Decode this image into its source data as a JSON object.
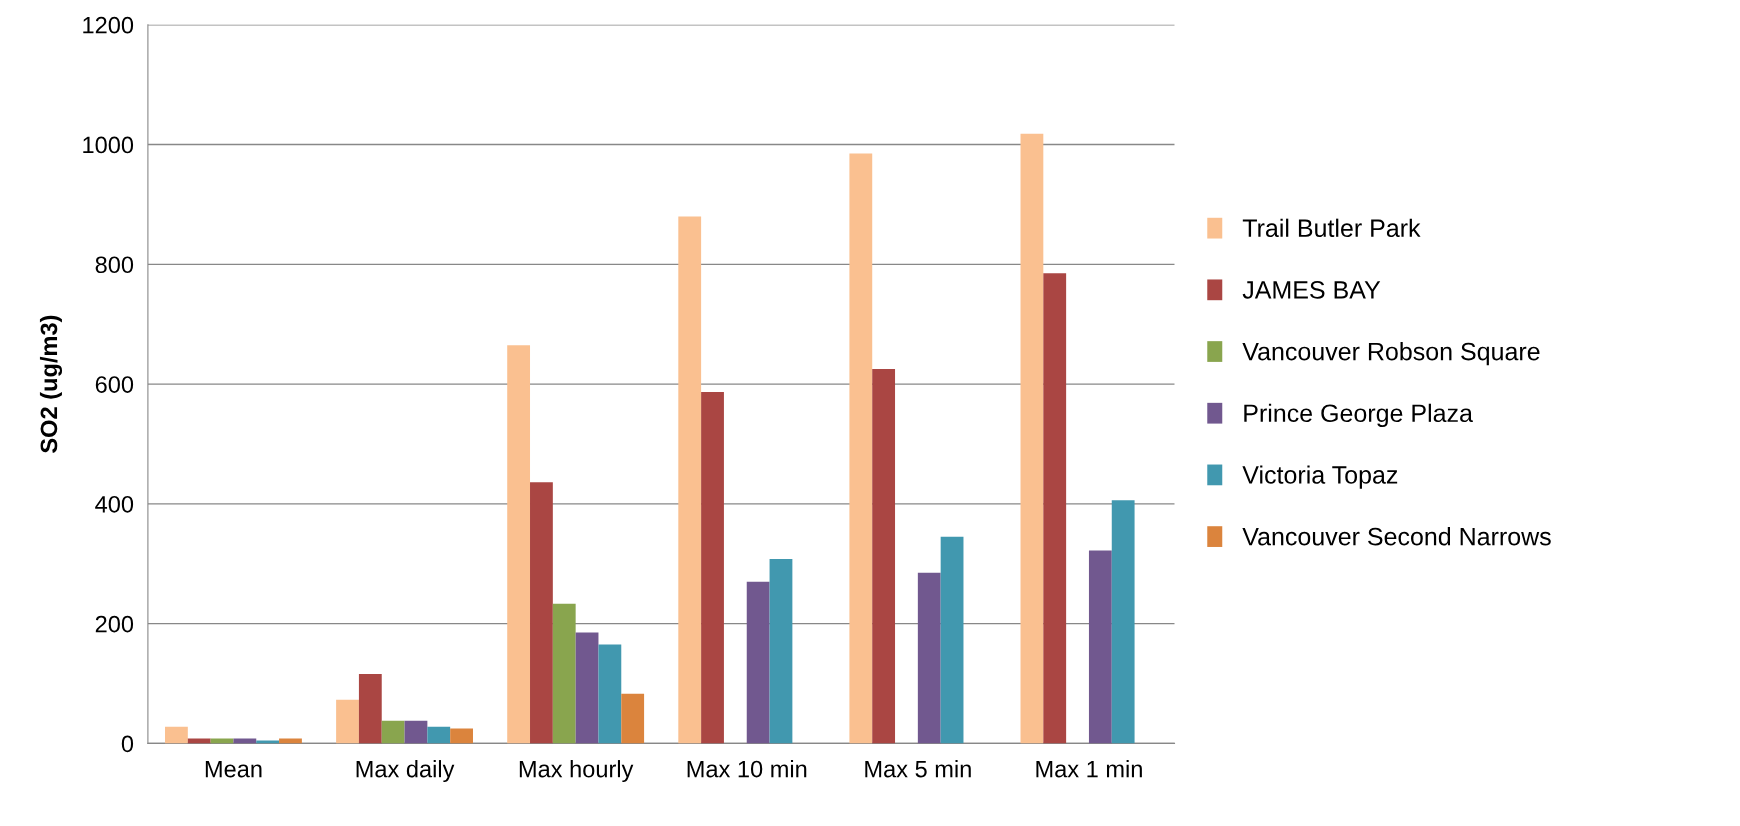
{
  "chart_data": {
    "type": "bar",
    "ylabel": "SO2 (ug/m3)",
    "categories": [
      "Mean",
      "Max daily",
      "Max hourly",
      "Max 10 min",
      "Max 5 min",
      "Max 1 min"
    ],
    "series": [
      {
        "name": "Trail Butler Park",
        "color": "#fac090",
        "values": [
          28,
          73,
          665,
          880,
          985,
          1018
        ]
      },
      {
        "name": "JAMES BAY",
        "color": "#aa4643",
        "values": [
          8,
          116,
          436,
          587,
          625,
          785
        ]
      },
      {
        "name": "Vancouver Robson Square",
        "color": "#89a54e",
        "values": [
          8,
          38,
          233,
          null,
          null,
          null
        ]
      },
      {
        "name": "Prince George Plaza",
        "color": "#71588f",
        "values": [
          8,
          38,
          185,
          270,
          285,
          322
        ]
      },
      {
        "name": "Victoria Topaz",
        "color": "#4198af",
        "values": [
          5,
          28,
          165,
          308,
          345,
          406
        ]
      },
      {
        "name": "Vancouver Second Narrows",
        "color": "#db843d",
        "values": [
          8,
          25,
          83,
          null,
          null,
          null
        ]
      }
    ],
    "ylim": [
      0,
      1200
    ],
    "yticks": [
      0,
      200,
      400,
      600,
      800,
      1000,
      1200
    ],
    "grid": "y",
    "legend": "right"
  }
}
